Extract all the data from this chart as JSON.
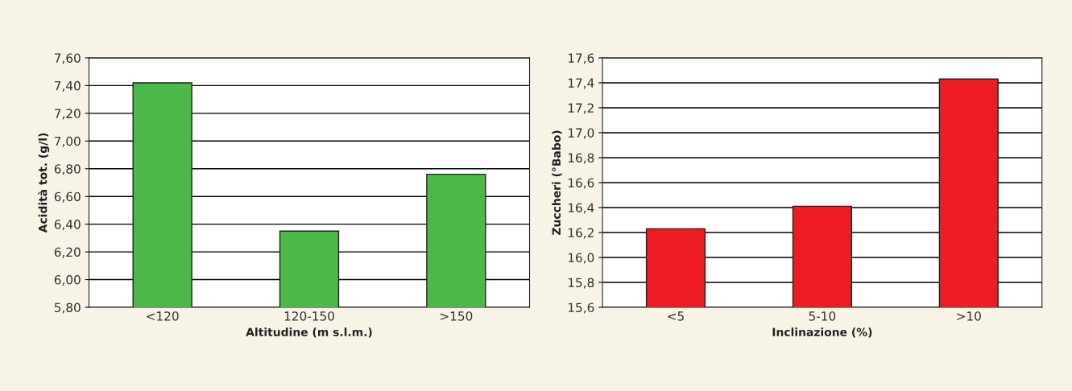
{
  "chart_data": [
    {
      "type": "bar",
      "xlabel": "Altitudine (m s.l.m.)",
      "ylabel": "Acidità tot. (g/l)",
      "categories": [
        "<120",
        "120-150",
        ">150"
      ],
      "values": [
        7.42,
        6.35,
        6.76
      ],
      "color": "#4cb848",
      "ylim": [
        5.8,
        7.6
      ],
      "yticks": [
        {
          "value": 5.8,
          "label": "5,80"
        },
        {
          "value": 6.0,
          "label": "6,00"
        },
        {
          "value": 6.2,
          "label": "6,20"
        },
        {
          "value": 6.4,
          "label": "6,40"
        },
        {
          "value": 6.6,
          "label": "6,60"
        },
        {
          "value": 6.8,
          "label": "6,80"
        },
        {
          "value": 7.0,
          "label": "7,00"
        },
        {
          "value": 7.2,
          "label": "7,20"
        },
        {
          "value": 7.4,
          "label": "7,40"
        },
        {
          "value": 7.6,
          "label": "7,60"
        }
      ],
      "grid": "y"
    },
    {
      "type": "bar",
      "xlabel": "Inclinazione (%)",
      "ylabel": "Zuccheri (°Babo)",
      "categories": [
        "<5",
        "5-10",
        ">10"
      ],
      "values": [
        16.23,
        16.41,
        17.43
      ],
      "color": "#ed1c24",
      "ylim": [
        15.6,
        17.6
      ],
      "yticks": [
        {
          "value": 15.6,
          "label": "15,6"
        },
        {
          "value": 15.8,
          "label": "15,8"
        },
        {
          "value": 16.0,
          "label": "16,0"
        },
        {
          "value": 16.2,
          "label": "16,2"
        },
        {
          "value": 16.4,
          "label": "16,4"
        },
        {
          "value": 16.6,
          "label": "16,6"
        },
        {
          "value": 16.8,
          "label": "16,8"
        },
        {
          "value": 17.0,
          "label": "17,0"
        },
        {
          "value": 17.2,
          "label": "17,2"
        },
        {
          "value": 17.4,
          "label": "17,4"
        },
        {
          "value": 17.6,
          "label": "17,6"
        }
      ],
      "grid": "y"
    }
  ]
}
